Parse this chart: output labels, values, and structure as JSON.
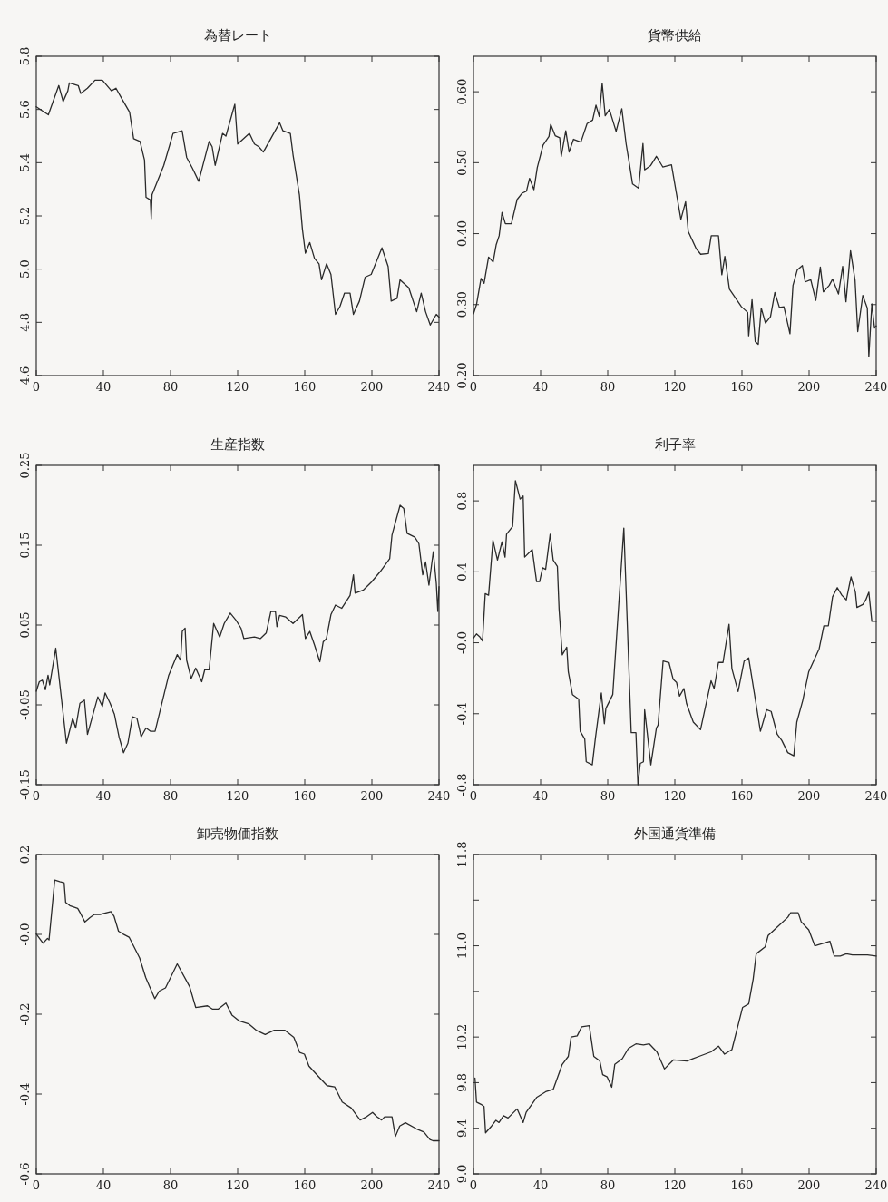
{
  "chart_data": [
    {
      "type": "line",
      "title": "為替レート",
      "xlim": [
        0,
        240
      ],
      "xticks": [
        0,
        40,
        80,
        120,
        160,
        200,
        240
      ],
      "ylim": [
        4.6,
        5.8
      ],
      "yticks": [
        {
          "value": 4.6,
          "label": "4.6"
        },
        {
          "value": 4.8,
          "label": "4.8"
        },
        {
          "value": 5.0,
          "label": "5.0"
        },
        {
          "value": 5.2,
          "label": "5.2"
        },
        {
          "value": 5.4,
          "label": "5.4"
        },
        {
          "value": 5.6,
          "label": "5.6"
        },
        {
          "value": 5.8,
          "label": "5.8"
        }
      ],
      "x": [
        0,
        7.2,
        13.4,
        16,
        18.8,
        19.7,
        25,
        26.5,
        30.5,
        35,
        39.4,
        44.8,
        47.5,
        51,
        55.6,
        58,
        61.8,
        64.5,
        65.4,
        68,
        68.5,
        69,
        76,
        81.5,
        86.9,
        89.6,
        93,
        96.8,
        103,
        104.8,
        106.6,
        111,
        113,
        118.3,
        120,
        127,
        130,
        132.6,
        135.3,
        145,
        147,
        151.4,
        153,
        156.8,
        158.6,
        160.4,
        163,
        165.8,
        168.5,
        170,
        173,
        175.6,
        178.3,
        181,
        183.7,
        187,
        189,
        192.6,
        196,
        199.6,
        206,
        209.7,
        211.5,
        215,
        216.8,
        222,
        226.7,
        229.4,
        232,
        234.8,
        238.4,
        240
      ],
      "series": [
        {
          "color": "#2a2a2a",
          "values": [
            5.61,
            5.58,
            5.69,
            5.63,
            5.67,
            5.7,
            5.69,
            5.66,
            5.68,
            5.71,
            5.71,
            5.67,
            5.68,
            5.64,
            5.59,
            5.49,
            5.48,
            5.41,
            5.27,
            5.26,
            5.19,
            5.28,
            5.39,
            5.51,
            5.52,
            5.42,
            5.38,
            5.33,
            5.48,
            5.46,
            5.39,
            5.51,
            5.5,
            5.62,
            5.47,
            5.51,
            5.47,
            5.46,
            5.44,
            5.55,
            5.52,
            5.51,
            5.43,
            5.28,
            5.15,
            5.06,
            5.1,
            5.04,
            5.02,
            4.96,
            5.02,
            4.98,
            4.83,
            4.86,
            4.91,
            4.91,
            4.83,
            4.88,
            4.97,
            4.98,
            5.08,
            5.01,
            4.88,
            4.89,
            4.96,
            4.93,
            4.84,
            4.91,
            4.84,
            4.79,
            4.83,
            4.82
          ]
        }
      ]
    },
    {
      "type": "line",
      "title": "貨幣供給",
      "xlim": [
        0,
        240
      ],
      "xticks": [
        0,
        40,
        80,
        120,
        160,
        200,
        240
      ],
      "ylim": [
        0.2,
        0.65
      ],
      "yticks": [
        {
          "value": 0.2,
          "label": "0.20"
        },
        {
          "value": 0.3,
          "label": "0.30"
        },
        {
          "value": 0.4,
          "label": "0.40"
        },
        {
          "value": 0.5,
          "label": "0.50"
        },
        {
          "value": 0.6,
          "label": "0.60"
        }
      ],
      "x": [
        0,
        1.8,
        4.5,
        6.3,
        9,
        11.7,
        13.5,
        15.3,
        17,
        19,
        22.6,
        26,
        29,
        31.6,
        33.4,
        36,
        38,
        41.5,
        45,
        46,
        48.7,
        51.4,
        52.3,
        55,
        57,
        59.6,
        64,
        67.7,
        71,
        73,
        75,
        76.7,
        78.5,
        81,
        85,
        88.4,
        91,
        93,
        94.8,
        98.4,
        101,
        102,
        105.6,
        109,
        112.8,
        118,
        123.6,
        126.4,
        128,
        132.7,
        135.4,
        140,
        141.7,
        146,
        148,
        149.8,
        152.5,
        159.7,
        163.4,
        164,
        166,
        167.9,
        169.7,
        171.5,
        174,
        177,
        179.6,
        182.3,
        185,
        188.6,
        190.4,
        193,
        196,
        197.7,
        201,
        204,
        206.7,
        208.5,
        212,
        214,
        217.5,
        220,
        222,
        224.7,
        227.4,
        229,
        232,
        234.7,
        235.6,
        237.4,
        239,
        240
      ],
      "series": [
        {
          "color": "#2a2a2a",
          "values": [
            0.287,
            0.3,
            0.337,
            0.33,
            0.367,
            0.36,
            0.384,
            0.397,
            0.43,
            0.414,
            0.414,
            0.448,
            0.457,
            0.46,
            0.478,
            0.462,
            0.493,
            0.525,
            0.537,
            0.554,
            0.538,
            0.535,
            0.509,
            0.545,
            0.515,
            0.533,
            0.529,
            0.555,
            0.56,
            0.581,
            0.565,
            0.612,
            0.566,
            0.575,
            0.544,
            0.576,
            0.526,
            0.497,
            0.47,
            0.464,
            0.527,
            0.49,
            0.496,
            0.509,
            0.494,
            0.497,
            0.42,
            0.445,
            0.403,
            0.379,
            0.371,
            0.372,
            0.397,
            0.397,
            0.342,
            0.368,
            0.322,
            0.297,
            0.289,
            0.256,
            0.307,
            0.248,
            0.244,
            0.295,
            0.274,
            0.283,
            0.317,
            0.296,
            0.297,
            0.259,
            0.327,
            0.349,
            0.355,
            0.332,
            0.335,
            0.306,
            0.353,
            0.318,
            0.327,
            0.336,
            0.315,
            0.354,
            0.304,
            0.376,
            0.334,
            0.262,
            0.313,
            0.295,
            0.227,
            0.301,
            0.267,
            0.27
          ]
        }
      ]
    },
    {
      "type": "line",
      "title": "生産指数",
      "xlim": [
        0,
        240
      ],
      "xticks": [
        0,
        40,
        80,
        120,
        160,
        200,
        240
      ],
      "ylim": [
        -0.15,
        0.25
      ],
      "yticks": [
        {
          "value": -0.15,
          "label": "-0.15"
        },
        {
          "value": -0.05,
          "label": "-0.05"
        },
        {
          "value": 0.05,
          "label": "0.05"
        },
        {
          "value": 0.15,
          "label": "0.15"
        },
        {
          "value": 0.25,
          "label": "0.25"
        }
      ],
      "x": [
        0,
        1.8,
        3.6,
        5.4,
        7,
        8,
        11.6,
        18,
        21.7,
        23.5,
        26,
        28.7,
        30.5,
        36.7,
        39.4,
        41,
        44,
        46.6,
        49.3,
        52,
        54.6,
        57.3,
        60,
        62.5,
        65.4,
        68,
        70.8,
        78.9,
        84,
        86,
        87,
        88.7,
        89.6,
        92.3,
        95,
        98.6,
        100.4,
        103,
        105.7,
        109.3,
        112,
        115.6,
        119,
        122,
        123.7,
        130,
        133.5,
        137,
        139.8,
        142.5,
        143.4,
        145,
        148.7,
        153,
        158.6,
        160.4,
        163,
        165.8,
        169,
        171,
        172.9,
        175.6,
        178.3,
        182,
        187,
        189,
        190,
        195,
        199.8,
        205,
        210.6,
        212,
        216.8,
        219,
        221,
        225.6,
        228,
        230.3,
        232,
        234,
        236.6,
        238.4,
        239.3,
        240
      ],
      "series": [
        {
          "color": "#2a2a2a",
          "values": [
            -0.033,
            -0.021,
            -0.019,
            -0.031,
            -0.013,
            -0.025,
            0.021,
            -0.098,
            -0.067,
            -0.079,
            -0.048,
            -0.044,
            -0.087,
            -0.04,
            -0.052,
            -0.035,
            -0.048,
            -0.062,
            -0.09,
            -0.11,
            -0.098,
            -0.065,
            -0.067,
            -0.09,
            -0.079,
            -0.083,
            -0.083,
            -0.013,
            0.013,
            0.006,
            0.042,
            0.046,
            0.006,
            -0.017,
            -0.004,
            -0.021,
            -0.006,
            -0.006,
            0.052,
            0.035,
            0.052,
            0.065,
            0.056,
            0.046,
            0.033,
            0.035,
            0.033,
            0.04,
            0.067,
            0.067,
            0.048,
            0.062,
            0.06,
            0.052,
            0.063,
            0.033,
            0.042,
            0.025,
            0.004,
            0.029,
            0.033,
            0.063,
            0.075,
            0.071,
            0.087,
            0.113,
            0.09,
            0.094,
            0.104,
            0.117,
            0.133,
            0.163,
            0.2,
            0.196,
            0.165,
            0.16,
            0.152,
            0.113,
            0.129,
            0.1,
            0.142,
            0.102,
            0.067,
            0.098
          ]
        }
      ]
    },
    {
      "type": "line",
      "title": "利子率",
      "xlim": [
        0,
        240
      ],
      "xticks": [
        0,
        40,
        80,
        120,
        160,
        200,
        240
      ],
      "ylim": [
        -0.8,
        1.0
      ],
      "yticks": [
        {
          "value": -0.8,
          "label": "-0.8"
        },
        {
          "value": -0.4,
          "label": "-0.4"
        },
        {
          "value": 0,
          "label": "-0.0"
        },
        {
          "value": 0.4,
          "label": "0.4"
        },
        {
          "value": 0.8,
          "label": "0.8"
        }
      ],
      "x": [
        0,
        1.8,
        3.6,
        5.4,
        7,
        9,
        11.6,
        14.3,
        17,
        18.8,
        19.7,
        23.3,
        25,
        27.8,
        29.6,
        30.5,
        35,
        37.6,
        39.4,
        41.2,
        43,
        45.7,
        47.5,
        50,
        51,
        52.9,
        55.6,
        56.5,
        59,
        62.7,
        63.6,
        66.3,
        67.2,
        70.8,
        72.6,
        76.2,
        78,
        78.9,
        83,
        89.6,
        94,
        96.8,
        98,
        99.4,
        101.3,
        102,
        105.7,
        109,
        110,
        113,
        116.5,
        119,
        121,
        122.8,
        125.4,
        127,
        131,
        135.3,
        141.6,
        143.4,
        146,
        148.7,
        152.3,
        154,
        157.7,
        161.3,
        164,
        171,
        174.7,
        177.4,
        181,
        183.7,
        187.3,
        190.9,
        192.7,
        196.2,
        199.8,
        206,
        208.8,
        211.5,
        214,
        216.8,
        219.5,
        222.2,
        225,
        227.6,
        228.5,
        232,
        233.8,
        235.6,
        237.4,
        240
      ],
      "series": [
        {
          "color": "#2a2a2a",
          "values": [
            0.027,
            0.05,
            0.035,
            0.01,
            0.277,
            0.268,
            0.578,
            0.466,
            0.569,
            0.483,
            0.612,
            0.655,
            0.914,
            0.81,
            0.828,
            0.483,
            0.526,
            0.345,
            0.345,
            0.423,
            0.414,
            0.612,
            0.466,
            0.431,
            0.19,
            -0.068,
            -0.025,
            -0.163,
            -0.292,
            -0.318,
            -0.499,
            -0.542,
            -0.671,
            -0.688,
            -0.542,
            -0.283,
            -0.456,
            -0.37,
            -0.292,
            0.647,
            -0.507,
            -0.507,
            -0.8,
            -0.68,
            -0.671,
            -0.378,
            -0.688,
            -0.481,
            -0.464,
            -0.103,
            -0.111,
            -0.206,
            -0.223,
            -0.301,
            -0.258,
            -0.344,
            -0.447,
            -0.49,
            -0.214,
            -0.258,
            -0.111,
            -0.111,
            0.104,
            -0.146,
            -0.275,
            -0.103,
            -0.085,
            -0.499,
            -0.378,
            -0.387,
            -0.516,
            -0.55,
            -0.619,
            -0.637,
            -0.447,
            -0.326,
            -0.163,
            -0.034,
            0.096,
            0.096,
            0.259,
            0.311,
            0.268,
            0.242,
            0.371,
            0.285,
            0.199,
            0.216,
            0.242,
            0.285,
            0.121,
            0.121
          ]
        }
      ]
    },
    {
      "type": "line",
      "title": "卸売物価指数",
      "xlim": [
        0,
        240
      ],
      "xticks": [
        0,
        40,
        80,
        120,
        160,
        200,
        240
      ],
      "ylim": [
        -0.6,
        0.2
      ],
      "yticks": [
        {
          "value": -0.6,
          "label": "-0.6"
        },
        {
          "value": -0.4,
          "label": "-0.4"
        },
        {
          "value": -0.2,
          "label": "-0.2"
        },
        {
          "value": 0,
          "label": "-0.0"
        },
        {
          "value": 0.2,
          "label": "0.2"
        }
      ],
      "x": [
        0,
        4,
        6.7,
        7.6,
        11,
        14,
        16.6,
        17.5,
        20,
        24.7,
        26.3,
        29,
        32,
        34.6,
        38,
        44.5,
        46.3,
        49,
        51.7,
        55.3,
        61.6,
        65.2,
        70.6,
        73.3,
        77,
        84,
        91.4,
        95,
        102,
        104.9,
        108.5,
        113,
        116.6,
        121,
        126.5,
        131,
        136.4,
        141.8,
        148,
        153.5,
        157,
        159.8,
        162.5,
        169.7,
        173.3,
        177.8,
        182.3,
        187.7,
        193,
        196.8,
        200.4,
        203,
        205.8,
        207.6,
        212,
        214,
        216.6,
        220,
        226.5,
        231,
        234.6,
        236.4,
        240
      ],
      "series": [
        {
          "color": "#2a2a2a",
          "values": [
            0.001,
            -0.022,
            -0.01,
            -0.014,
            0.136,
            0.132,
            0.129,
            0.08,
            0.072,
            0.065,
            0.053,
            0.031,
            0.042,
            0.05,
            0.05,
            0.057,
            0.046,
            0.008,
            0.001,
            -0.007,
            -0.059,
            -0.108,
            -0.161,
            -0.142,
            -0.134,
            -0.074,
            -0.131,
            -0.183,
            -0.179,
            -0.187,
            -0.187,
            -0.172,
            -0.202,
            -0.217,
            -0.224,
            -0.24,
            -0.251,
            -0.24,
            -0.24,
            -0.258,
            -0.296,
            -0.3,
            -0.33,
            -0.363,
            -0.379,
            -0.382,
            -0.42,
            -0.435,
            -0.465,
            -0.457,
            -0.446,
            -0.457,
            -0.465,
            -0.457,
            -0.457,
            -0.506,
            -0.48,
            -0.472,
            -0.487,
            -0.495,
            -0.514,
            -0.517,
            -0.517
          ]
        }
      ]
    },
    {
      "type": "line",
      "title": "外国通貨準備",
      "xlim": [
        0,
        240
      ],
      "xticks": [
        0,
        40,
        80,
        120,
        160,
        200,
        240
      ],
      "ylim": [
        9.0,
        11.8
      ],
      "yticks": [
        {
          "value": 9.0,
          "label": "9.0"
        },
        {
          "value": 9.4,
          "label": "9.4"
        },
        {
          "value": 9.8,
          "label": "9.8"
        },
        {
          "value": 10.2,
          "label": "10.2"
        },
        {
          "value": 10.6,
          "label": null
        },
        {
          "value": 11.0,
          "label": "11.0"
        },
        {
          "value": 11.4,
          "label": null
        },
        {
          "value": 11.8,
          "label": "11.8"
        }
      ],
      "x": [
        0.9,
        1.8,
        4.5,
        6.3,
        7.2,
        10.8,
        13.4,
        15.2,
        17.9,
        20.6,
        26,
        29.6,
        31.4,
        37.6,
        43,
        47.5,
        52.9,
        56.5,
        58.2,
        61.8,
        64.5,
        69,
        71.7,
        75.3,
        77,
        79.7,
        82.4,
        84.2,
        88.7,
        92.3,
        96.8,
        101.3,
        104.8,
        109.3,
        113.8,
        119.2,
        127.2,
        134.4,
        141.6,
        146,
        149.6,
        154,
        160.4,
        164,
        166.7,
        168.5,
        173.8,
        175.6,
        187.3,
        189,
        193.5,
        195.3,
        199.8,
        203.4,
        212.4,
        215,
        218.6,
        222.2,
        225.8,
        234.8,
        240
      ],
      "series": [
        {
          "color": "#2a2a2a",
          "values": [
            9.84,
            9.63,
            9.61,
            9.59,
            9.36,
            9.42,
            9.47,
            9.45,
            9.51,
            9.49,
            9.57,
            9.45,
            9.54,
            9.67,
            9.72,
            9.74,
            9.96,
            10.03,
            10.2,
            10.21,
            10.29,
            10.3,
            10.03,
            9.99,
            9.87,
            9.85,
            9.76,
            9.96,
            10.01,
            10.1,
            10.14,
            10.13,
            10.14,
            10.07,
            9.92,
            10.0,
            9.99,
            10.03,
            10.07,
            10.12,
            10.05,
            10.09,
            10.46,
            10.49,
            10.71,
            10.93,
            10.99,
            11.09,
            11.25,
            11.29,
            11.29,
            11.21,
            11.14,
            11.0,
            11.04,
            10.91,
            10.91,
            10.93,
            10.92,
            10.92,
            10.91
          ]
        }
      ]
    }
  ]
}
